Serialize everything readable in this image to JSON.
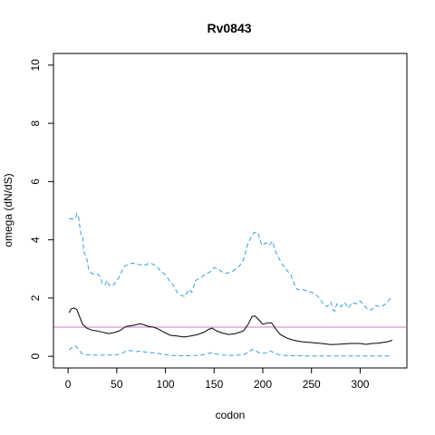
{
  "chart_data": {
    "type": "line",
    "title": "Rv0843",
    "xlabel": "codon",
    "ylabel": "omega (dN/dS)",
    "xlim": [
      -15,
      348
    ],
    "ylim": [
      -0.4,
      10.4
    ],
    "x_ticks": [
      0,
      50,
      100,
      150,
      200,
      250,
      300
    ],
    "y_ticks": [
      0,
      2,
      4,
      6,
      8,
      10
    ],
    "reference_line": {
      "y": 1,
      "color": "#cc79c4"
    },
    "grid": false,
    "colors": {
      "median": "#000000",
      "bounds": "#3a9fd8"
    },
    "series": [
      {
        "style": "solid",
        "points": [
          [
            1,
            1.5
          ],
          [
            3,
            1.62
          ],
          [
            6,
            1.66
          ],
          [
            9,
            1.6
          ],
          [
            12,
            1.35
          ],
          [
            15,
            1.1
          ],
          [
            19,
            0.97
          ],
          [
            24,
            0.9
          ],
          [
            30,
            0.87
          ],
          [
            36,
            0.82
          ],
          [
            42,
            0.78
          ],
          [
            48,
            0.82
          ],
          [
            53,
            0.88
          ],
          [
            57,
            0.97
          ],
          [
            60,
            1.03
          ],
          [
            65,
            1.05
          ],
          [
            70,
            1.08
          ],
          [
            74,
            1.12
          ],
          [
            78,
            1.08
          ],
          [
            83,
            1.02
          ],
          [
            88,
            1.0
          ],
          [
            93,
            0.93
          ],
          [
            99,
            0.82
          ],
          [
            105,
            0.72
          ],
          [
            112,
            0.7
          ],
          [
            119,
            0.66
          ],
          [
            126,
            0.7
          ],
          [
            133,
            0.75
          ],
          [
            140,
            0.83
          ],
          [
            144,
            0.92
          ],
          [
            148,
            0.97
          ],
          [
            152,
            0.88
          ],
          [
            158,
            0.8
          ],
          [
            165,
            0.75
          ],
          [
            172,
            0.78
          ],
          [
            180,
            0.87
          ],
          [
            185,
            1.1
          ],
          [
            189,
            1.37
          ],
          [
            192,
            1.38
          ],
          [
            196,
            1.25
          ],
          [
            200,
            1.1
          ],
          [
            205,
            1.15
          ],
          [
            209,
            1.15
          ],
          [
            213,
            0.95
          ],
          [
            218,
            0.75
          ],
          [
            225,
            0.62
          ],
          [
            232,
            0.55
          ],
          [
            240,
            0.5
          ],
          [
            250,
            0.47
          ],
          [
            260,
            0.44
          ],
          [
            270,
            0.4
          ],
          [
            280,
            0.42
          ],
          [
            290,
            0.44
          ],
          [
            300,
            0.44
          ],
          [
            306,
            0.41
          ],
          [
            312,
            0.44
          ],
          [
            318,
            0.45
          ],
          [
            324,
            0.48
          ],
          [
            328,
            0.5
          ],
          [
            333,
            0.55
          ]
        ]
      },
      {
        "style": "dashed",
        "points": [
          [
            1,
            4.72
          ],
          [
            5,
            4.72
          ],
          [
            8,
            4.75
          ],
          [
            9,
            4.9
          ],
          [
            11,
            4.75
          ],
          [
            13,
            4.2
          ],
          [
            15,
            4.15
          ],
          [
            16,
            3.6
          ],
          [
            19,
            3.4
          ],
          [
            21,
            3.0
          ],
          [
            24,
            2.85
          ],
          [
            30,
            2.82
          ],
          [
            33,
            2.75
          ],
          [
            35,
            2.5
          ],
          [
            38,
            2.45
          ],
          [
            40,
            2.6
          ],
          [
            42,
            2.45
          ],
          [
            45,
            2.4
          ],
          [
            48,
            2.5
          ],
          [
            50,
            2.6
          ],
          [
            53,
            2.75
          ],
          [
            55,
            2.9
          ],
          [
            58,
            3.1
          ],
          [
            62,
            3.15
          ],
          [
            66,
            3.2
          ],
          [
            72,
            3.15
          ],
          [
            78,
            3.12
          ],
          [
            84,
            3.2
          ],
          [
            88,
            3.15
          ],
          [
            92,
            3.05
          ],
          [
            96,
            2.9
          ],
          [
            100,
            2.8
          ],
          [
            104,
            2.6
          ],
          [
            108,
            2.45
          ],
          [
            112,
            2.2
          ],
          [
            116,
            2.1
          ],
          [
            120,
            2.05
          ],
          [
            124,
            2.3
          ],
          [
            127,
            2.2
          ],
          [
            131,
            2.6
          ],
          [
            136,
            2.7
          ],
          [
            141,
            2.82
          ],
          [
            146,
            2.9
          ],
          [
            150,
            3.05
          ],
          [
            154,
            3.0
          ],
          [
            158,
            2.9
          ],
          [
            163,
            2.85
          ],
          [
            168,
            2.9
          ],
          [
            172,
            3.0
          ],
          [
            176,
            3.1
          ],
          [
            180,
            3.3
          ],
          [
            184,
            3.8
          ],
          [
            188,
            4.1
          ],
          [
            191,
            4.25
          ],
          [
            195,
            4.25
          ],
          [
            198,
            3.9
          ],
          [
            200,
            3.8
          ],
          [
            203,
            3.9
          ],
          [
            207,
            3.82
          ],
          [
            210,
            3.95
          ],
          [
            213,
            3.6
          ],
          [
            216,
            3.4
          ],
          [
            220,
            3.15
          ],
          [
            223,
            3.05
          ],
          [
            226,
            2.9
          ],
          [
            229,
            2.8
          ],
          [
            232,
            2.5
          ],
          [
            235,
            2.3
          ],
          [
            240,
            2.3
          ],
          [
            245,
            2.25
          ],
          [
            250,
            2.2
          ],
          [
            255,
            2.1
          ],
          [
            258,
            2.0
          ],
          [
            262,
            1.8
          ],
          [
            266,
            1.7
          ],
          [
            270,
            1.85
          ],
          [
            272,
            1.6
          ],
          [
            274,
            1.55
          ],
          [
            276,
            1.8
          ],
          [
            280,
            1.7
          ],
          [
            284,
            1.85
          ],
          [
            288,
            1.65
          ],
          [
            292,
            1.85
          ],
          [
            296,
            1.8
          ],
          [
            300,
            1.9
          ],
          [
            304,
            1.75
          ],
          [
            308,
            1.6
          ],
          [
            312,
            1.6
          ],
          [
            316,
            1.75
          ],
          [
            320,
            1.7
          ],
          [
            324,
            1.75
          ],
          [
            328,
            1.85
          ],
          [
            331,
            2.0
          ],
          [
            333,
            2.0
          ]
        ]
      },
      {
        "style": "dashed",
        "points": [
          [
            1,
            0.22
          ],
          [
            4,
            0.3
          ],
          [
            7,
            0.36
          ],
          [
            9,
            0.32
          ],
          [
            12,
            0.18
          ],
          [
            15,
            0.08
          ],
          [
            20,
            0.05
          ],
          [
            30,
            0.04
          ],
          [
            40,
            0.04
          ],
          [
            50,
            0.05
          ],
          [
            55,
            0.1
          ],
          [
            60,
            0.18
          ],
          [
            64,
            0.2
          ],
          [
            70,
            0.16
          ],
          [
            75,
            0.18
          ],
          [
            80,
            0.14
          ],
          [
            86,
            0.12
          ],
          [
            92,
            0.1
          ],
          [
            98,
            0.06
          ],
          [
            106,
            0.03
          ],
          [
            116,
            0.02
          ],
          [
            126,
            0.02
          ],
          [
            136,
            0.04
          ],
          [
            142,
            0.08
          ],
          [
            147,
            0.12
          ],
          [
            152,
            0.08
          ],
          [
            160,
            0.04
          ],
          [
            170,
            0.03
          ],
          [
            180,
            0.05
          ],
          [
            186,
            0.15
          ],
          [
            189,
            0.24
          ],
          [
            192,
            0.2
          ],
          [
            196,
            0.12
          ],
          [
            202,
            0.1
          ],
          [
            208,
            0.18
          ],
          [
            212,
            0.12
          ],
          [
            216,
            0.06
          ],
          [
            222,
            0.03
          ],
          [
            232,
            0.02
          ],
          [
            250,
            0.01
          ],
          [
            270,
            0.01
          ],
          [
            290,
            0.01
          ],
          [
            310,
            0.01
          ],
          [
            333,
            0.01
          ]
        ]
      }
    ]
  }
}
